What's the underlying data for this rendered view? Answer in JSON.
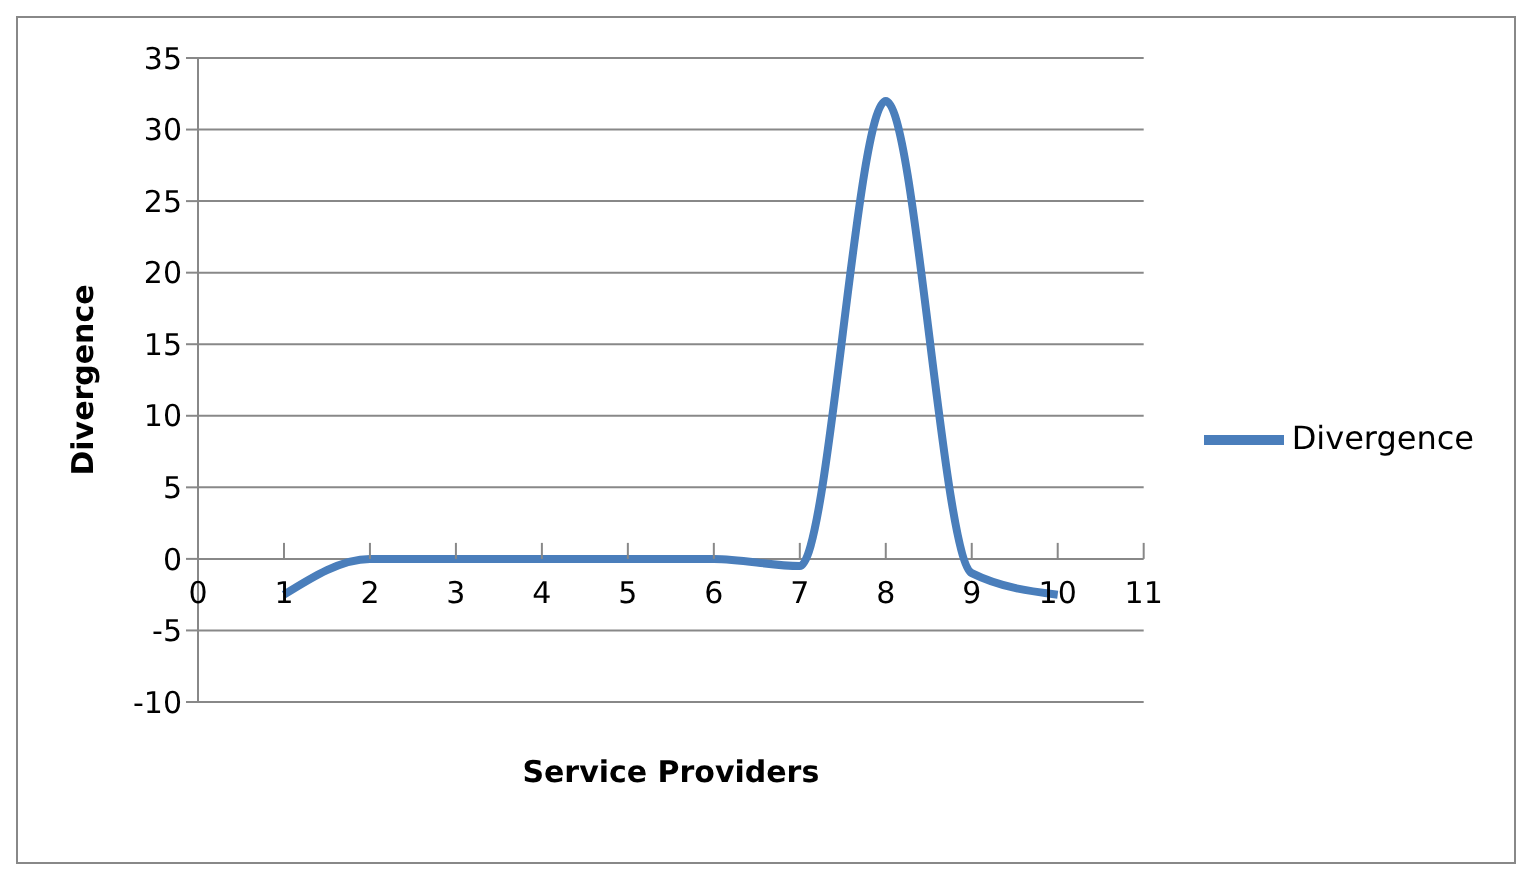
{
  "chart_data": {
    "type": "line",
    "xlabel": "Service Providers",
    "ylabel": "Divergence",
    "x": [
      1,
      2,
      3,
      4,
      5,
      6,
      7,
      8,
      9,
      10
    ],
    "series": [
      {
        "name": "Divergence",
        "color": "#4a7ebb",
        "values": [
          -2.5,
          0,
          0,
          0,
          0,
          0,
          -0.5,
          32,
          -1,
          -2.5
        ]
      }
    ],
    "xlim": [
      0,
      11
    ],
    "xticks": [
      0,
      1,
      2,
      3,
      4,
      5,
      6,
      7,
      8,
      9,
      10,
      11
    ],
    "ylim": [
      -10,
      35
    ],
    "yticks": [
      -10,
      -5,
      0,
      5,
      10,
      15,
      20,
      25,
      30,
      35
    ],
    "grid": "y",
    "legend": "right",
    "marker": "none",
    "line_style": "solid"
  }
}
